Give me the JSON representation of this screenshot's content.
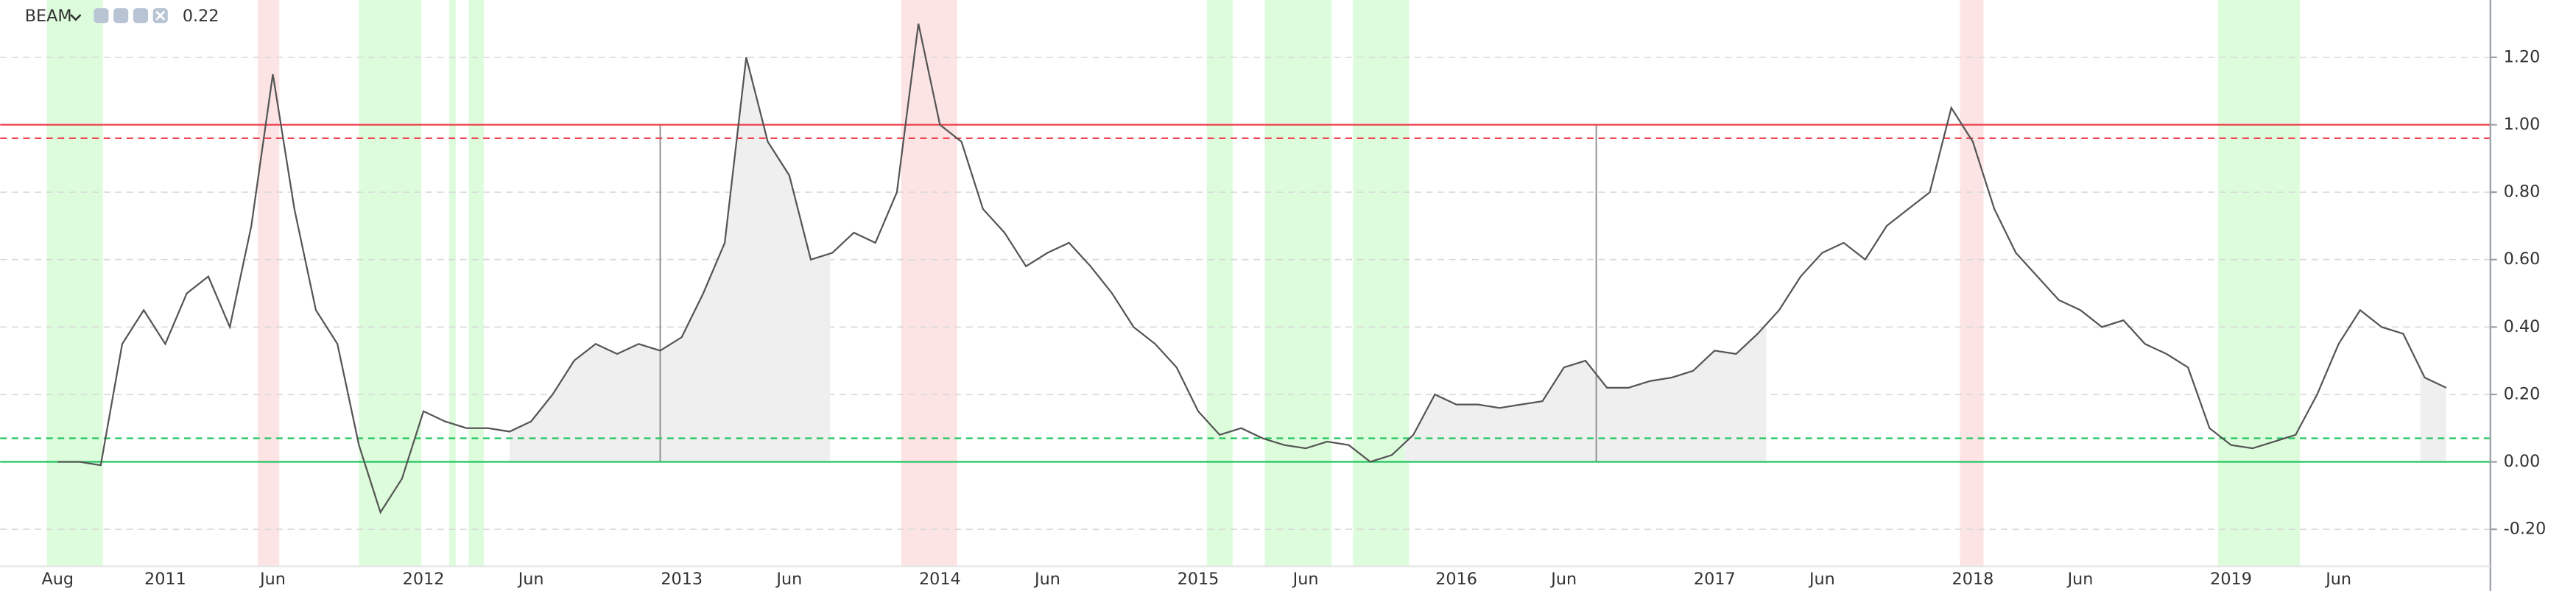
{
  "header": {
    "symbol": "BEAM",
    "value": "0.22"
  },
  "chart_data": {
    "type": "line",
    "categories": [
      "Aug",
      null,
      null,
      null,
      null,
      "2011",
      null,
      null,
      null,
      null,
      "Jun",
      null,
      null,
      null,
      null,
      null,
      null,
      "2012",
      null,
      null,
      null,
      null,
      "Jun",
      null,
      null,
      null,
      null,
      null,
      null,
      "2013",
      null,
      null,
      null,
      null,
      "Jun",
      null,
      null,
      null,
      null,
      null,
      null,
      "2014",
      null,
      null,
      null,
      null,
      "Jun",
      null,
      null,
      null,
      null,
      null,
      null,
      "2015",
      null,
      null,
      null,
      null,
      "Jun",
      null,
      null,
      null,
      null,
      null,
      null,
      "2016",
      null,
      null,
      null,
      null,
      "Jun",
      null,
      null,
      null,
      null,
      null,
      null,
      "2017",
      null,
      null,
      null,
      null,
      "Jun",
      null,
      null,
      null,
      null,
      null,
      null,
      "2018",
      null,
      null,
      null,
      null,
      "Jun",
      null,
      null,
      null,
      null,
      null,
      null,
      "2019",
      null,
      null,
      null,
      null,
      "Jun",
      null,
      null,
      null,
      null,
      null
    ],
    "values": [
      0.0,
      0.0,
      -0.01,
      0.35,
      0.45,
      0.35,
      0.5,
      0.55,
      0.4,
      0.7,
      1.15,
      0.75,
      0.45,
      0.35,
      0.05,
      -0.15,
      -0.05,
      0.15,
      0.12,
      0.1,
      0.1,
      0.09,
      0.12,
      0.2,
      0.3,
      0.35,
      0.32,
      0.35,
      0.33,
      0.37,
      0.5,
      0.65,
      1.2,
      0.95,
      0.85,
      0.6,
      0.62,
      0.68,
      0.65,
      0.8,
      1.3,
      1.0,
      0.95,
      0.75,
      0.68,
      0.58,
      0.62,
      0.65,
      0.58,
      0.5,
      0.4,
      0.35,
      0.28,
      0.15,
      0.08,
      0.1,
      0.07,
      0.05,
      0.04,
      0.06,
      0.05,
      0.0,
      0.02,
      0.08,
      0.2,
      0.17,
      0.17,
      0.16,
      0.17,
      0.18,
      0.28,
      0.3,
      0.22,
      0.22,
      0.24,
      0.25,
      0.27,
      0.33,
      0.32,
      0.38,
      0.45,
      0.55,
      0.62,
      0.65,
      0.6,
      0.7,
      0.75,
      0.8,
      1.05,
      0.95,
      0.75,
      0.62,
      0.55,
      0.48,
      0.45,
      0.4,
      0.42,
      0.35,
      0.32,
      0.28,
      0.1,
      0.05,
      0.04,
      0.06,
      0.08,
      0.2,
      0.35,
      0.45,
      0.4,
      0.38,
      0.25,
      0.22
    ],
    "color": "#555555",
    "ylim": [
      -0.31,
      1.37
    ],
    "yticks": [
      {
        "value": -0.2,
        "label": "-0.20"
      },
      {
        "value": 0,
        "label": "0.00"
      },
      {
        "value": 0.2,
        "label": "0.20"
      },
      {
        "value": 0.4,
        "label": "0.40"
      },
      {
        "value": 0.6,
        "label": "0.60"
      },
      {
        "value": 0.8,
        "label": "0.80"
      },
      {
        "value": 1.0,
        "label": "1.00"
      },
      {
        "value": 1.2,
        "label": "1.20"
      }
    ],
    "grid": true,
    "levels": [
      {
        "value": 1.0,
        "color": "#f23645",
        "dash": false
      },
      {
        "value": 0.96,
        "color": "#f23645",
        "dash": true
      },
      {
        "value": 0.07,
        "color": "#22c55e",
        "dash": true
      },
      {
        "value": 0.0,
        "color": "#22c55e",
        "dash": false
      }
    ],
    "green_bands": [
      [
        -0.5,
        2.1
      ],
      [
        14.0,
        16.9
      ],
      [
        18.2,
        18.5
      ],
      [
        19.1,
        19.8
      ],
      [
        53.4,
        54.6
      ],
      [
        56.1,
        59.2
      ],
      [
        60.2,
        62.8
      ],
      [
        100.4,
        104.2
      ]
    ],
    "green_color": "#dcfcdc",
    "red_bands": [
      [
        9.3,
        10.3
      ],
      [
        39.2,
        41.8
      ],
      [
        88.4,
        89.5
      ]
    ],
    "red_color": "#fde4e4",
    "shaded_ranges": [
      [
        21,
        35.9
      ],
      [
        62.6,
        79.4
      ],
      [
        109.8,
        111
      ]
    ],
    "shade_color": "#efefef",
    "vlines": [
      28,
      71.5
    ]
  }
}
